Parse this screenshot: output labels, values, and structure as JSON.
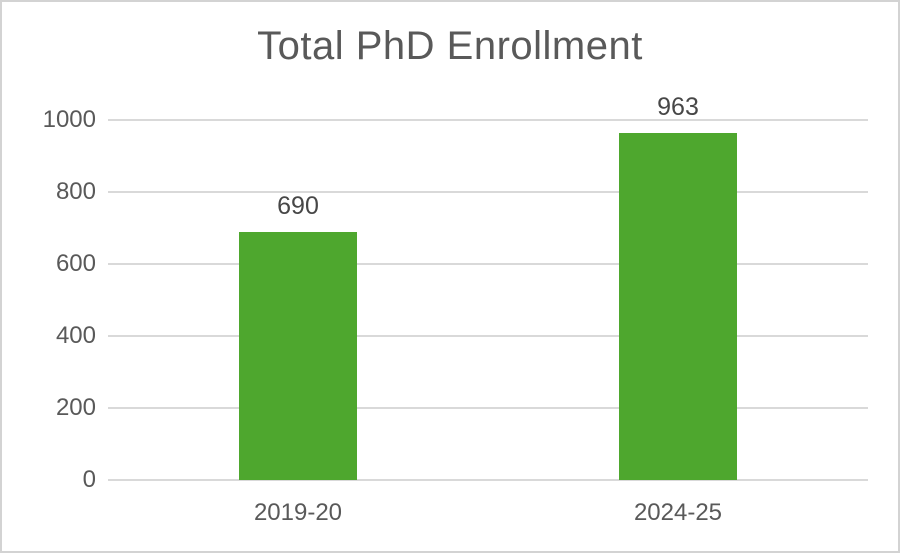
{
  "chart_data": {
    "type": "bar",
    "title": "Total PhD Enrollment",
    "categories": [
      "2019-20",
      "2024-25"
    ],
    "values": [
      690,
      963
    ],
    "data_labels": [
      "690",
      "963"
    ],
    "xlabel": "",
    "ylabel": "",
    "ylim": [
      0,
      1000
    ],
    "yticks": [
      0,
      200,
      400,
      600,
      800,
      1000
    ],
    "grid": "horizontal-only",
    "legend_position": "none"
  },
  "colors": {
    "bar_fill": "#4EA72E",
    "gridline": "#D9D9D9",
    "axis_text": "#595959",
    "title_text": "#595959",
    "value_label_text": "#474747",
    "frame_border": "#D3D3D3",
    "background": "#FFFFFF"
  }
}
